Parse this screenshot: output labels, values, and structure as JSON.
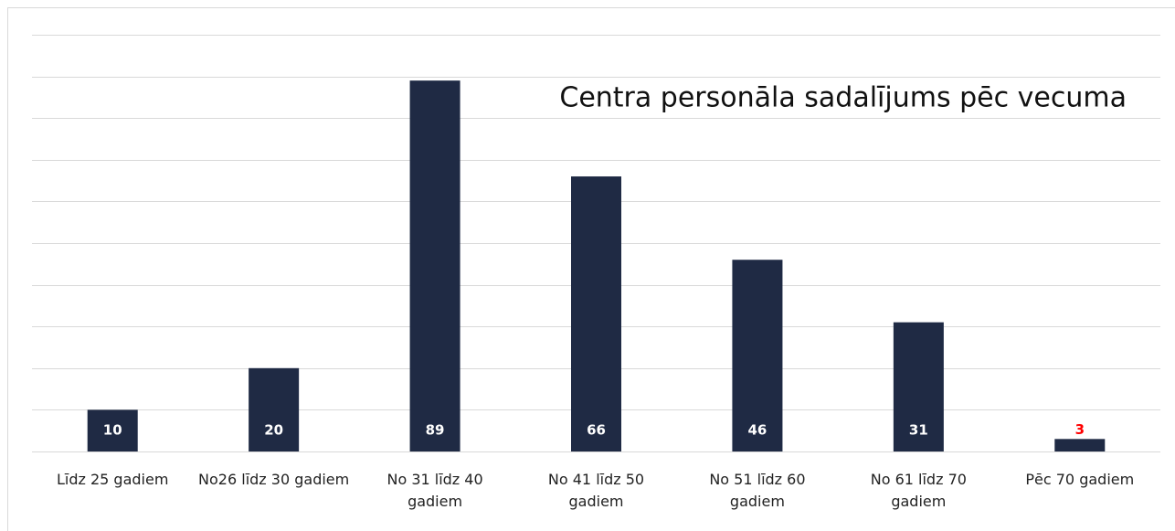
{
  "chart_data": {
    "type": "bar",
    "title": "Centra personāla sadalījums pēc vecuma",
    "categories": [
      "Līdz 25 gadiem",
      "No26 līdz 30 gadiem",
      "No 31 līdz 40 gadiem",
      "No 41 līdz 50 gadiem",
      "No 51 līdz 60 gadiem",
      "No 61 līdz 70 gadiem",
      "Pēc 70 gadiem"
    ],
    "values": [
      10,
      20,
      89,
      66,
      46,
      31,
      3
    ],
    "color": "#1f2a44",
    "ylim": [
      0,
      100
    ],
    "yticks": [
      0,
      10,
      20,
      30,
      40,
      50,
      60,
      70,
      80,
      90,
      100
    ],
    "grid": true
  }
}
